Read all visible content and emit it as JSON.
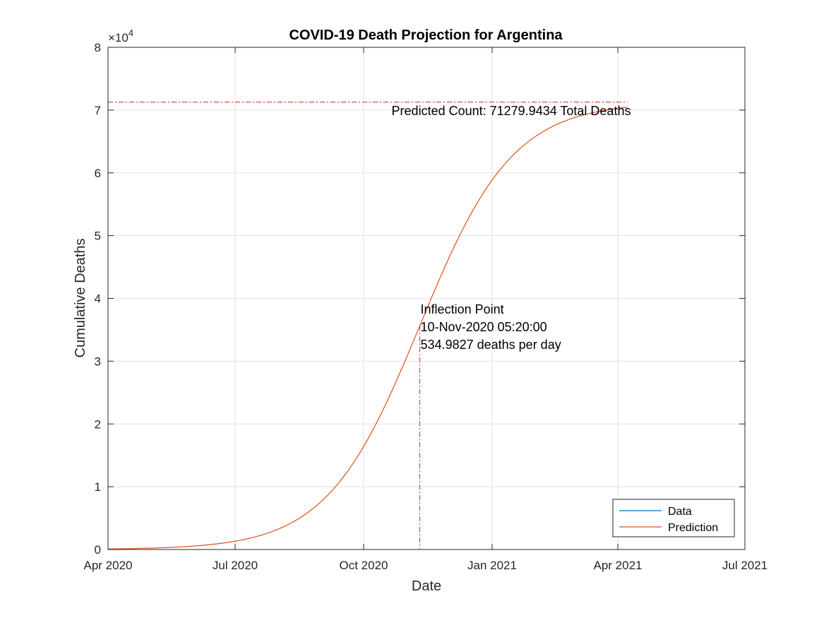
{
  "chart_data": {
    "type": "line",
    "title": "COVID-19 Death Projection for Argentina",
    "xlabel": "Date",
    "ylabel": "Cumulative Deaths",
    "y_exponent_label": "×10",
    "y_exponent_power": "4",
    "x_ticks": [
      "2020-04-01",
      "2020-07-01",
      "2020-10-01",
      "2021-01-01",
      "2021-04-01",
      "2021-07-01"
    ],
    "x_tick_labels": [
      "Apr 2020",
      "Jul 2020",
      "Oct 2020",
      "Jan 2021",
      "Apr 2021",
      "Jul 2021"
    ],
    "xlim": [
      "2020-04-01",
      "2021-07-01"
    ],
    "y_ticks": [
      0,
      10000,
      20000,
      30000,
      40000,
      50000,
      60000,
      70000,
      80000
    ],
    "y_tick_labels": [
      "0",
      "1",
      "2",
      "3",
      "4",
      "5",
      "6",
      "7",
      "8"
    ],
    "ylim": [
      0,
      80000
    ],
    "grid": true,
    "legend_position": "bottom-right",
    "series": [
      {
        "name": "Data",
        "color": "#0072BD",
        "x": [],
        "y": []
      },
      {
        "name": "Prediction",
        "color": "#D95319",
        "curve": "logistic",
        "start": "2020-04-01",
        "end": "2021-04-08",
        "capacity": 71279.9434,
        "midpoint": "2020-11-10T05:20:00",
        "max_rate_per_day": 534.9827
      }
    ],
    "annotations": {
      "predicted_line": {
        "y": 71279.9434,
        "x_start": "2020-04-01",
        "x_end": "2021-04-08",
        "color": "#D62728",
        "text": "Predicted Count: 71279.9434 Total Deaths"
      },
      "inflection": {
        "x": "2020-11-10T05:20:00",
        "color": "#D62728",
        "lines": [
          "Inflection Point",
          "10-Nov-2020 05:20:00",
          "534.9827 deaths per day"
        ]
      }
    }
  }
}
